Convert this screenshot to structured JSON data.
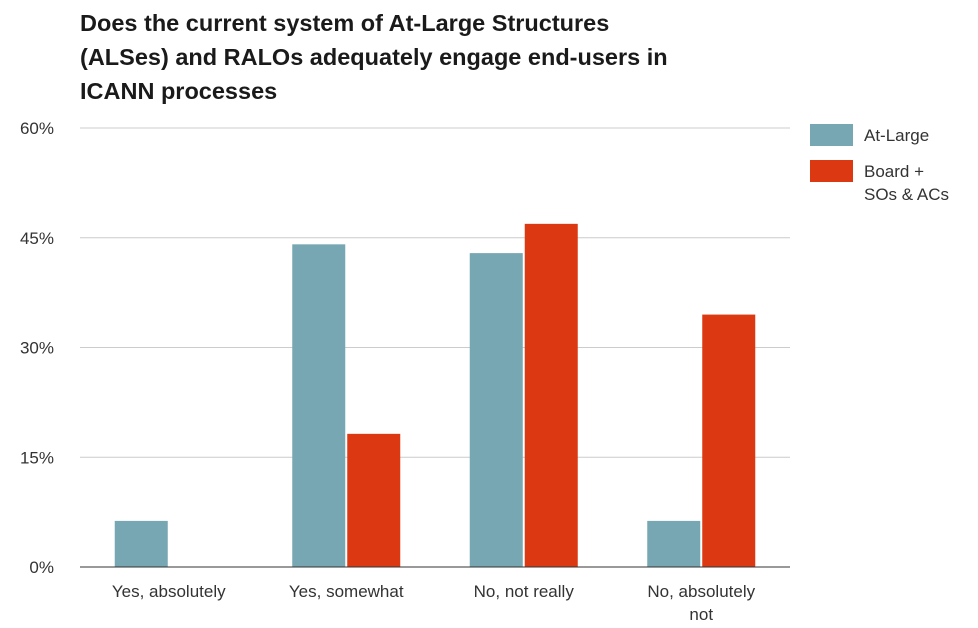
{
  "chart_data": {
    "type": "bar",
    "title_lines": [
      "Does the current system of At-Large Structures",
      "(ALSes) and RALOs adequately engage end-users in",
      "ICANN processes"
    ],
    "categories": [
      "Yes, absolutely",
      "Yes, somewhat",
      "No, not really",
      "No, absolutely not"
    ],
    "category_label_lines": [
      [
        "Yes, absolutely"
      ],
      [
        "Yes, somewhat"
      ],
      [
        "No, not really"
      ],
      [
        "No, absolutely",
        "not"
      ]
    ],
    "series": [
      {
        "name": "At-Large",
        "legend_lines": [
          "At-Large"
        ],
        "color": "#76a7b2",
        "values": [
          6.3,
          44.1,
          42.9,
          6.3
        ]
      },
      {
        "name": "Board + SOs & ACs",
        "legend_lines": [
          "Board +",
          "SOs & ACs"
        ],
        "color": "#dc3912",
        "values": [
          0,
          18.2,
          46.9,
          34.5
        ]
      }
    ],
    "yticks": [
      0,
      15,
      30,
      45,
      60
    ],
    "ytick_labels": [
      "0%",
      "15%",
      "30%",
      "45%",
      "60%"
    ],
    "ylim": [
      0,
      60
    ],
    "grid": true,
    "legend_position": "right"
  }
}
